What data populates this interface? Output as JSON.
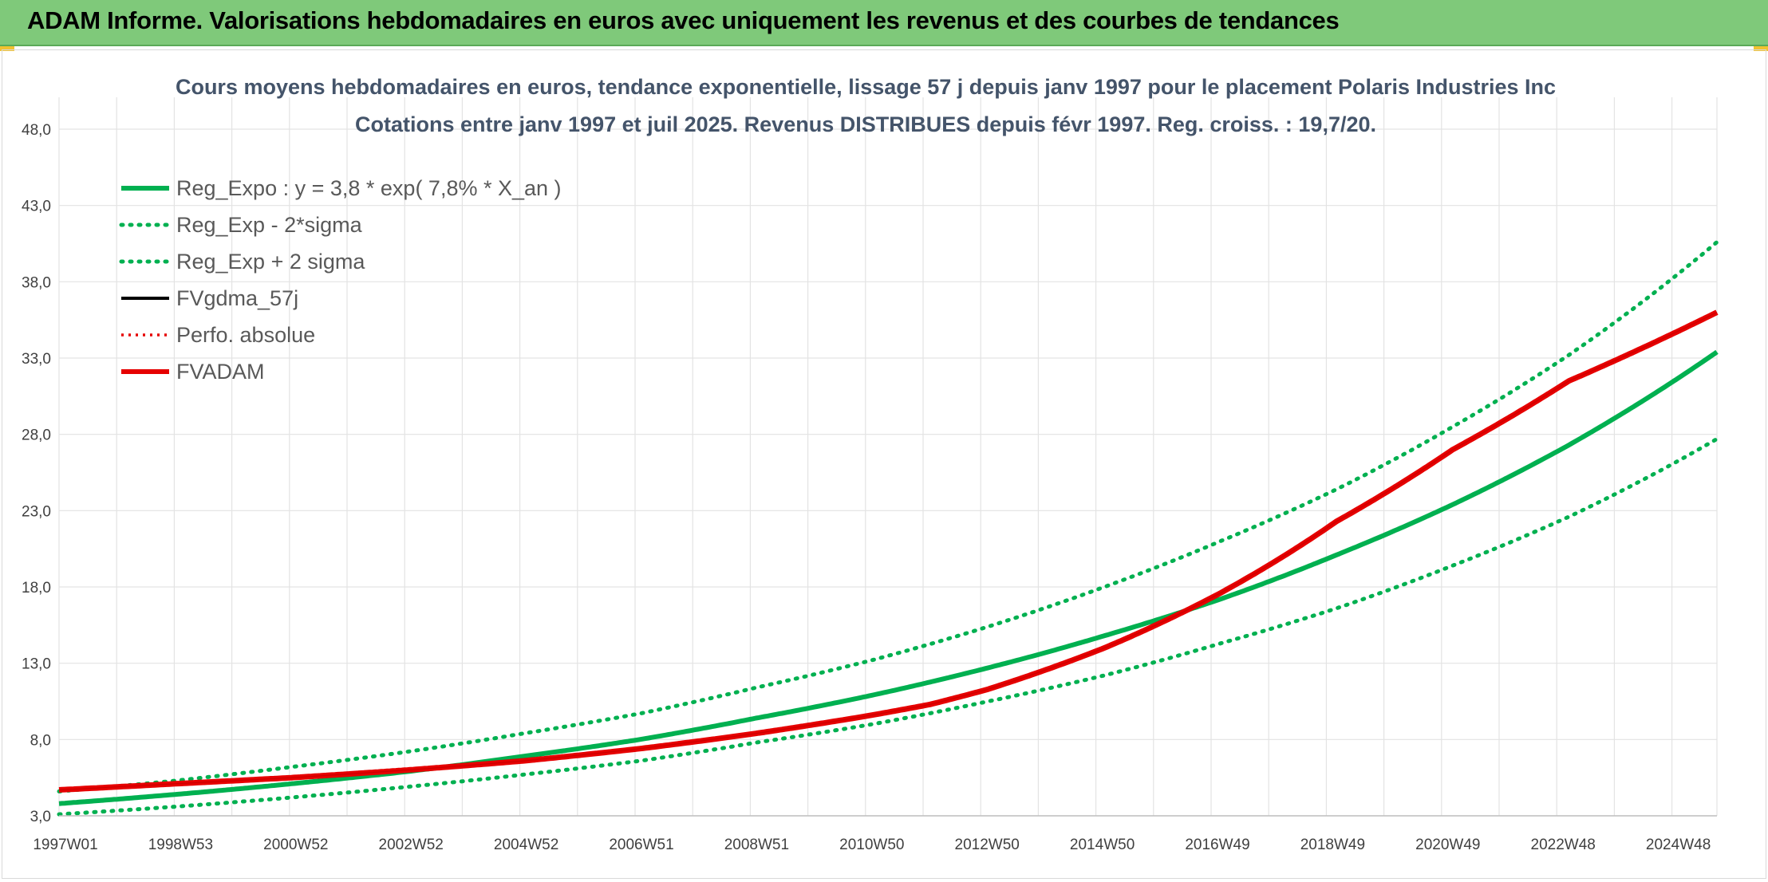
{
  "header": {
    "title": "ADAM Informe. Valorisations hebdomadaires en euros avec uniquement les revenus et des courbes de tendances"
  },
  "colors": {
    "banner": "#7fc97a",
    "green": "#00b050",
    "red": "#e60000",
    "black": "#000000",
    "grid": "#e3e3e3",
    "title": "#44546a"
  },
  "chart_data": {
    "type": "line",
    "title_lines": [
      "Cours moyens hebdomadaires en euros, tendance exponentielle, lissage 57 j depuis janv 1997 pour le placement Polaris Industries Inc",
      "Cotations entre janv 1997 et juil 2025. Revenus DISTRIBUES depuis févr 1997. Reg. croiss. : 19,7/20."
    ],
    "xlabel": "",
    "ylabel": "",
    "x_tick_labels": [
      "1997W01",
      "1998W53",
      "2000W52",
      "2002W52",
      "2004W52",
      "2006W51",
      "2008W51",
      "2010W50",
      "2012W50",
      "2014W50",
      "2016W49",
      "2018W49",
      "2020W49",
      "2022W48",
      "2024W48"
    ],
    "x_range_years": [
      1997.0,
      2025.55
    ],
    "ylim": [
      3.0,
      48.0
    ],
    "y_tick_labels": [
      "3,0",
      "8,0",
      "13,0",
      "18,0",
      "23,0",
      "28,0",
      "33,0",
      "38,0",
      "43,0",
      "48,0"
    ],
    "y_ticks": [
      3,
      8,
      13,
      18,
      23,
      28,
      33,
      38,
      43,
      48
    ],
    "grid": true,
    "legend_position": "top-left",
    "legend": [
      {
        "label": "Reg_Expo : y = 3,8 * exp( 7,8% *  X_an )",
        "style": "solid-thick",
        "color": "#00b050"
      },
      {
        "label": "Reg_Exp - 2*sigma",
        "style": "dotted",
        "color": "#00b050"
      },
      {
        "label": "Reg_Exp + 2 sigma",
        "style": "dotted",
        "color": "#00b050"
      },
      {
        "label": "FVgdma_57j",
        "style": "solid",
        "color": "#000000"
      },
      {
        "label": "Perfo. absolue",
        "style": "dotted-thin",
        "color": "#e60000"
      },
      {
        "label": "FVADAM",
        "style": "solid-thick",
        "color": "#e60000"
      }
    ],
    "series": [
      {
        "name": "Reg_Expo : y = 3,8 * exp( 7,8% *  X_an )",
        "x": [
          1997,
          1999,
          2001,
          2003,
          2005,
          2007,
          2009,
          2011,
          2013,
          2015,
          2017,
          2019,
          2021,
          2023,
          2025.55
        ],
        "values": [
          3.8,
          4.4,
          5.1,
          5.9,
          6.9,
          8.0,
          9.4,
          10.9,
          12.7,
          14.8,
          17.2,
          20.1,
          23.4,
          27.3,
          33.4
        ]
      },
      {
        "name": "Reg_Exp - 2*sigma",
        "x": [
          1997,
          1999,
          2001,
          2003,
          2005,
          2007,
          2009,
          2011,
          2013,
          2015,
          2017,
          2019,
          2021,
          2023,
          2025.55
        ],
        "values": [
          3.1,
          3.6,
          4.2,
          4.9,
          5.7,
          6.6,
          7.8,
          9.0,
          10.5,
          12.2,
          14.3,
          16.6,
          19.4,
          22.6,
          27.7
        ]
      },
      {
        "name": "Reg_Exp + 2 sigma",
        "x": [
          1997,
          1999,
          2001,
          2003,
          2005,
          2007,
          2009,
          2011,
          2013,
          2015,
          2017,
          2019,
          2021,
          2023,
          2025.55
        ],
        "values": [
          4.6,
          5.3,
          6.2,
          7.2,
          8.4,
          9.7,
          11.4,
          13.2,
          15.4,
          18.0,
          21.0,
          24.4,
          28.5,
          33.2,
          40.6
        ]
      },
      {
        "name": "FVADAM",
        "x": [
          1997,
          1999,
          2001,
          2003,
          2005,
          2007,
          2009,
          2011,
          2012,
          2013,
          2015,
          2016,
          2017,
          2019,
          2021,
          2023,
          2025.55
        ],
        "values": [
          4.7,
          5.1,
          5.5,
          6.0,
          6.6,
          7.4,
          8.4,
          9.6,
          10.3,
          11.3,
          14.0,
          15.7,
          17.6,
          22.3,
          27.0,
          31.5,
          36.0
        ]
      }
    ]
  }
}
